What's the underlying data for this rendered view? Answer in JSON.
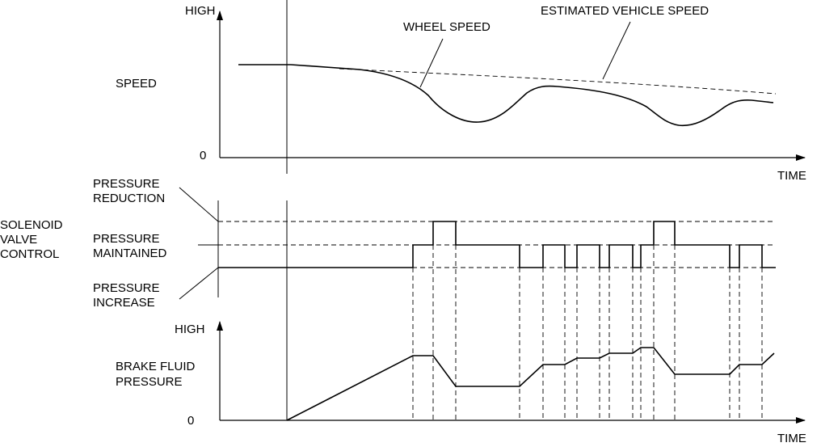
{
  "speed_panel": {
    "y_high": "HIGH",
    "y_zero": "0",
    "y_label": "SPEED",
    "x_label": "TIME",
    "wheel_speed_label": "WHEEL SPEED",
    "estimated_vehicle_speed_label": "ESTIMATED VEHICLE SPEED"
  },
  "solenoid_panel": {
    "title_lines": [
      "SOLENOID",
      "VALVE",
      "CONTROL"
    ],
    "reduction_lines": [
      "PRESSURE",
      "REDUCTION"
    ],
    "maintained_lines": [
      "PRESSURE",
      "MAINTAINED"
    ],
    "increase_lines": [
      "PRESSURE",
      "INCREASE"
    ]
  },
  "brake_panel": {
    "y_high": "HIGH",
    "y_zero": "0",
    "y_label_lines": [
      "BRAKE FLUID",
      "PRESSURE"
    ],
    "x_label": "TIME"
  }
}
